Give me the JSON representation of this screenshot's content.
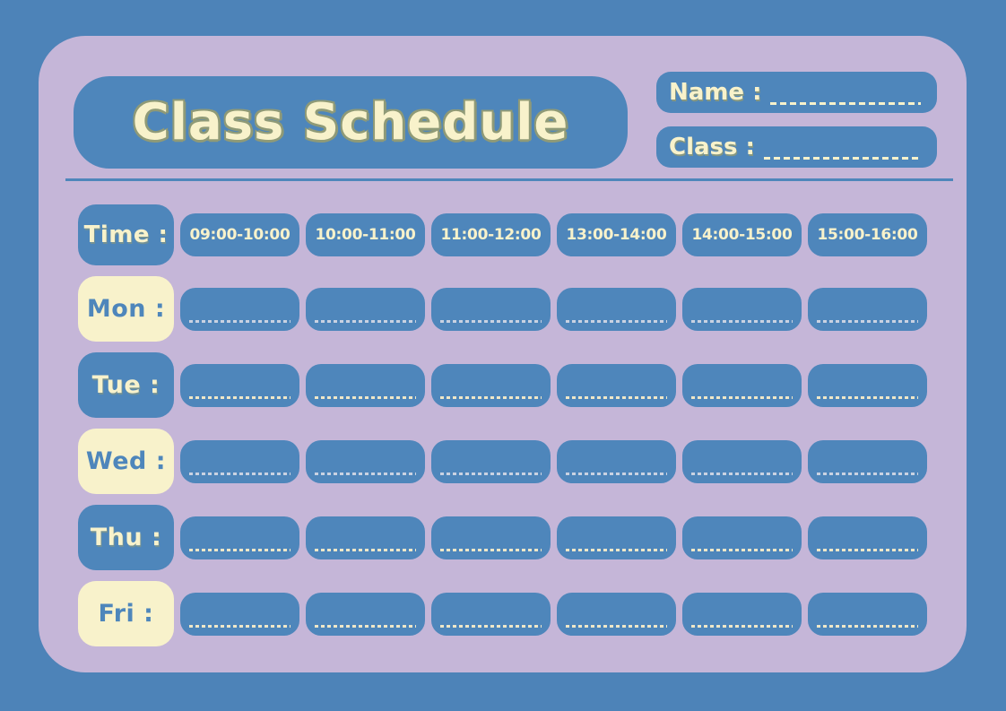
{
  "title": "Class Schedule",
  "header_fields": {
    "name_label": "Name :",
    "name_value": "",
    "class_label": "Class :",
    "class_value": ""
  },
  "schedule": {
    "time_header": "Time :",
    "time_slots": [
      "09:00-10:00",
      "10:00-11:00",
      "11:00-12:00",
      "13:00-14:00",
      "14:00-15:00",
      "15:00-16:00"
    ],
    "days": [
      "Mon :",
      "Tue :",
      "Wed :",
      "Thu :",
      "Fri :"
    ],
    "cell_value": ""
  },
  "colors": {
    "background": "#4d83b8",
    "panel": "#c5b6d8",
    "box_blue": "#4e86bb",
    "cream": "#f8f2cb",
    "title_outline": "#8f9a77",
    "dash_cream": "#eee7c8",
    "dash_lavender": "#c9d2e2",
    "divider": "#4e86bb"
  }
}
